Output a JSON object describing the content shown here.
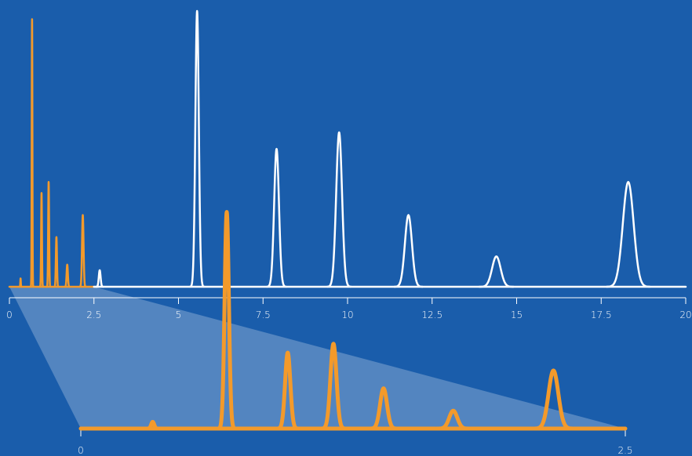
{
  "chart_data": [
    {
      "type": "line",
      "xlim": [
        0,
        20
      ],
      "xticks": [
        0,
        2.5,
        5,
        7.5,
        10,
        12.5,
        15,
        17.5,
        20
      ],
      "ylim": [
        0,
        100
      ],
      "series": [
        {
          "color": "#f39a2b",
          "x": [
            0.33,
            0.67,
            0.95,
            1.16,
            1.39,
            1.71,
            2.17
          ],
          "values": [
            3,
            97,
            34,
            38,
            18,
            8,
            26
          ]
        },
        {
          "color": "#ffffff",
          "x": [
            2.67,
            5.55,
            7.9,
            9.75,
            11.8,
            14.4,
            18.3
          ],
          "values": [
            6,
            100,
            50,
            56,
            26,
            11,
            38
          ]
        }
      ]
    },
    {
      "type": "line",
      "xlim": [
        0,
        2.5
      ],
      "xticks": [
        0,
        2.5
      ],
      "ylim": [
        0,
        100
      ],
      "series": [
        {
          "color": "#f39a2b",
          "x": [
            0.33,
            0.67,
            0.95,
            1.16,
            1.39,
            1.71,
            2.17
          ],
          "values": [
            3,
            97,
            34,
            38,
            18,
            8,
            26
          ]
        }
      ]
    }
  ]
}
